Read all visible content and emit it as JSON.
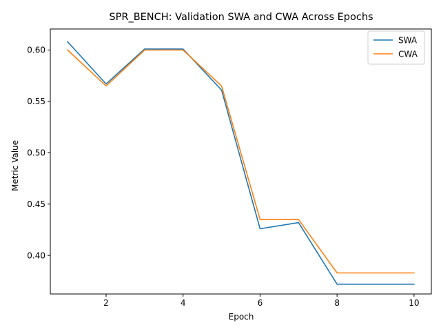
{
  "chart_data": {
    "type": "line",
    "title": "SPR_BENCH: Validation SWA and CWA Across Epochs",
    "xlabel": "Epoch",
    "ylabel": "Metric Value",
    "x": [
      1,
      2,
      3,
      4,
      5,
      6,
      7,
      8,
      9,
      10
    ],
    "xlim": [
      0.55,
      10.45
    ],
    "ylim": [
      0.3625,
      0.6205
    ],
    "xticks": [
      2,
      4,
      6,
      8,
      10
    ],
    "yticks": [
      0.4,
      0.45,
      0.5,
      0.55,
      0.6
    ],
    "xtick_labels": [
      "2",
      "4",
      "6",
      "8",
      "10"
    ],
    "ytick_labels": [
      "0.40",
      "0.45",
      "0.50",
      "0.55",
      "0.60"
    ],
    "grid": false,
    "legend_position": "top-right",
    "series": [
      {
        "name": "SWA",
        "color": "#1f77b4",
        "values": [
          0.608,
          0.567,
          0.601,
          0.601,
          0.561,
          0.426,
          0.432,
          0.372,
          0.372,
          0.372
        ]
      },
      {
        "name": "CWA",
        "color": "#ff7f0e",
        "values": [
          0.6,
          0.565,
          0.6,
          0.6,
          0.565,
          0.435,
          0.435,
          0.383,
          0.383,
          0.383
        ]
      }
    ]
  }
}
